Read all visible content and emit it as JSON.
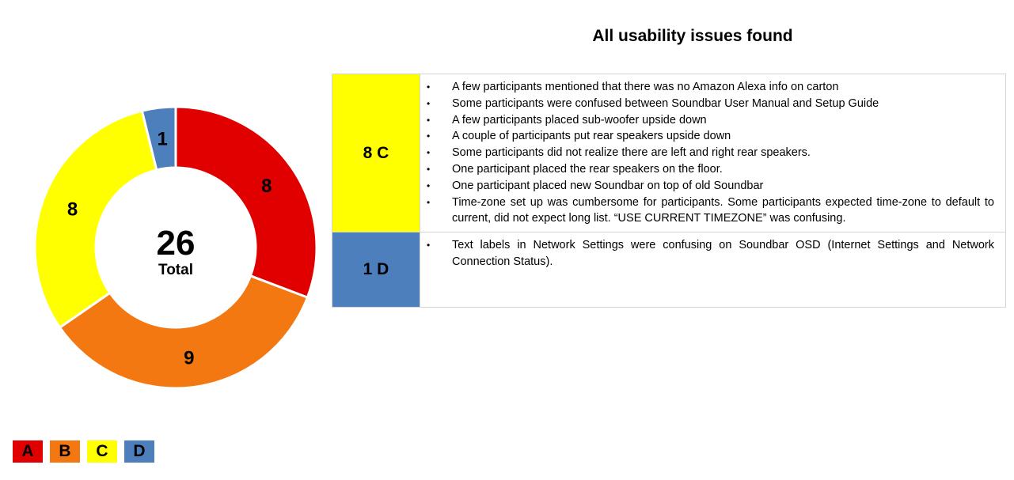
{
  "title": "All usability issues found",
  "colors": {
    "A": "#e00000",
    "B": "#f47811",
    "C": "#ffff00",
    "D": "#4e7fbd"
  },
  "chart_data": {
    "type": "pie",
    "variant": "donut",
    "categories": [
      "A",
      "B",
      "C",
      "D"
    ],
    "values": [
      8,
      9,
      8,
      1
    ],
    "data_labels": [
      "8",
      "9",
      "8",
      "1"
    ],
    "center_value": "26",
    "center_label": "Total"
  },
  "table": {
    "rows": [
      {
        "severity": "8 C",
        "color": "#ffff00",
        "issues": [
          "A few participants mentioned that there was no Amazon Alexa info on carton",
          "Some participants were confused between Soundbar User Manual and Setup Guide",
          "A few participants placed sub-woofer upside down",
          "A couple of participants put rear speakers upside down",
          "Some participants did not realize there are left and right rear speakers.",
          "One participant placed the rear speakers on the floor.",
          "One participant placed new Soundbar on top of old Soundbar",
          "Time-zone set up was cumbersome for participants. Some participants expected time-zone to default to current, did not expect long list. “USE CURRENT TIMEZONE” was confusing."
        ]
      },
      {
        "severity": "1 D",
        "color": "#4e7fbd",
        "issues": [
          "Text labels in Network Settings were confusing on Soundbar OSD (Internet Settings and Network Connection Status)."
        ]
      }
    ]
  },
  "legend": [
    "A",
    "B",
    "C",
    "D"
  ]
}
